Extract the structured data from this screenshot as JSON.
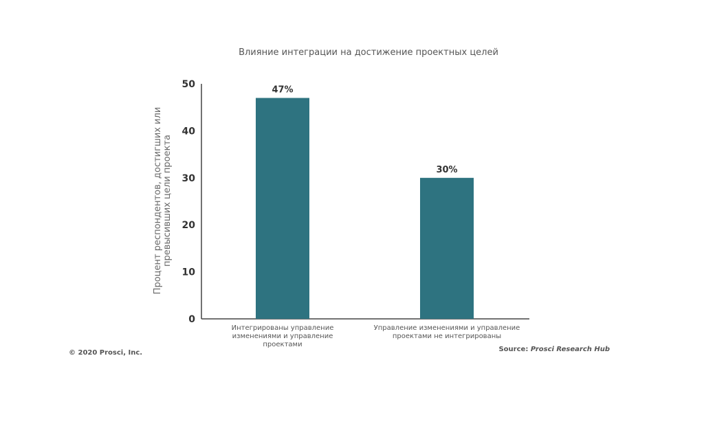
{
  "chart_data": {
    "type": "bar",
    "title": "Влияние интеграции на достижение проектных целей",
    "ylabel": [
      "Процент респондентов, достигших или",
      "превысивших цели проекта"
    ],
    "xlabel": "",
    "ylim": [
      0,
      50
    ],
    "yticks": [
      0,
      10,
      20,
      30,
      40,
      50
    ],
    "categories": [
      [
        "Интегрированы управление",
        "изменениями и управление",
        "проектами"
      ],
      [
        "Управление изменениями и управление",
        "проектами не интегрированы"
      ]
    ],
    "values": [
      47,
      30
    ],
    "data_labels": [
      "47%",
      "30%"
    ],
    "bar_color": "#2e7380",
    "grid": false,
    "legend": "none"
  },
  "footer": {
    "copyright": "© 2020 Prosci, Inc.",
    "source_prefix": "Source: ",
    "source_name": "Prosci Research Hub"
  }
}
